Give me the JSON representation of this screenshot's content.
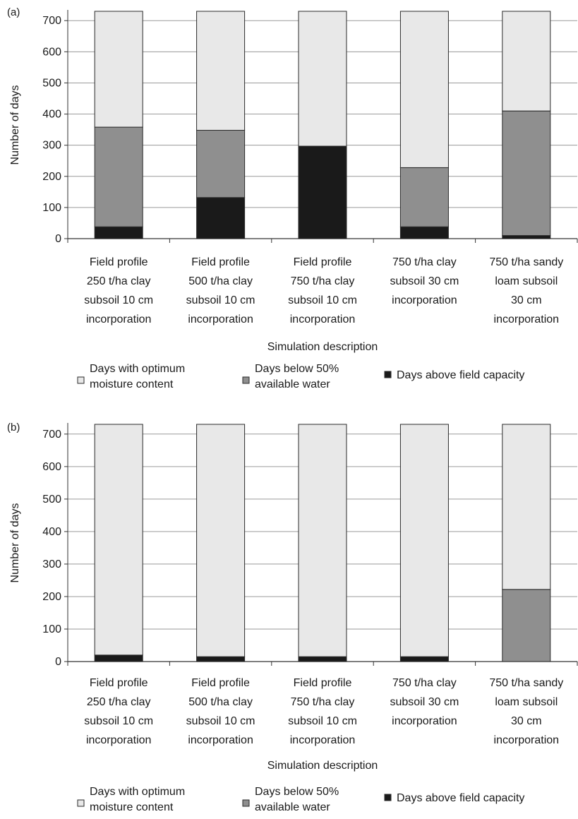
{
  "chart_data": [
    {
      "panel_label": "(a)",
      "type": "bar",
      "stacked": true,
      "categories": [
        [
          "Field profile",
          "250 t/ha clay",
          "subsoil 10 cm",
          "incorporation"
        ],
        [
          "Field profile",
          "500 t/ha clay",
          "subsoil 10 cm",
          "incorporation"
        ],
        [
          "Field profile",
          "750 t/ha clay",
          "subsoil 10 cm",
          "incorporation"
        ],
        [
          "750 t/ha clay",
          "subsoil 30 cm",
          "incorporation"
        ],
        [
          "750 t/ha sandy",
          "loam subsoil",
          "30 cm",
          "incorporation"
        ]
      ],
      "series": [
        {
          "name": "Days above field capacity",
          "color": "#1a1a1a",
          "values": [
            38,
            132,
            297,
            38,
            10
          ]
        },
        {
          "name": "Days below 50% available water",
          "color": "#8f8f8f",
          "values": [
            320,
            216,
            0,
            190,
            400
          ]
        },
        {
          "name": "Days with optimum moisture content",
          "color": "#e8e8e8",
          "values": [
            372,
            382,
            433,
            502,
            320
          ]
        }
      ],
      "xlabel": "Simulation description",
      "ylabel": "Number of days",
      "ylim": [
        0,
        730
      ],
      "yticks": [
        0,
        100,
        200,
        300,
        400,
        500,
        600,
        700
      ],
      "grid": true,
      "legend_position": "bottom"
    },
    {
      "panel_label": "(b)",
      "type": "bar",
      "stacked": true,
      "categories": [
        [
          "Field profile",
          "250 t/ha clay",
          "subsoil 10 cm",
          "incorporation"
        ],
        [
          "Field profile",
          "500 t/ha clay",
          "subsoil 10 cm",
          "incorporation"
        ],
        [
          "Field profile",
          "750 t/ha clay",
          "subsoil 10 cm",
          "incorporation"
        ],
        [
          "750 t/ha clay",
          "subsoil 30 cm",
          "incorporation"
        ],
        [
          "750 t/ha sandy",
          "loam subsoil",
          "30 cm",
          "incorporation"
        ]
      ],
      "series": [
        {
          "name": "Days above field capacity",
          "color": "#1a1a1a",
          "values": [
            20,
            15,
            15,
            15,
            0
          ]
        },
        {
          "name": "Days below 50% available water",
          "color": "#8f8f8f",
          "values": [
            0,
            0,
            0,
            0,
            222
          ]
        },
        {
          "name": "Days with optimum moisture content",
          "color": "#e8e8e8",
          "values": [
            710,
            715,
            715,
            715,
            508
          ]
        }
      ],
      "xlabel": "Simulation description",
      "ylabel": "Number of days",
      "ylim": [
        0,
        730
      ],
      "yticks": [
        0,
        100,
        200,
        300,
        400,
        500,
        600,
        700
      ],
      "grid": true,
      "legend_position": "bottom"
    }
  ],
  "legend": [
    {
      "lines": [
        "Days with optimum",
        "moisture content"
      ],
      "color": "#e8e8e8"
    },
    {
      "lines": [
        "Days below 50%",
        "available water"
      ],
      "color": "#8f8f8f"
    },
    {
      "lines": [
        "Days above field capacity"
      ],
      "color": "#1a1a1a"
    }
  ]
}
